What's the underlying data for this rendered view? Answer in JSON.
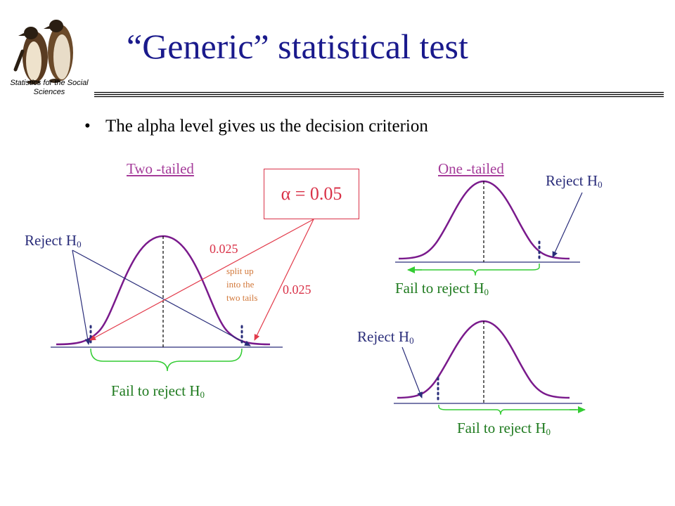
{
  "header": {
    "title": "“Generic” statistical test",
    "logo_caption": "Statistics for the Social Sciences"
  },
  "bullet": {
    "marker": "•",
    "text": "The alpha level gives us the decision criterion"
  },
  "two_tailed": {
    "heading": "Two -tailed",
    "alpha_box": "α = 0.05",
    "left_tail_value": "0.025",
    "right_tail_value": "0.025",
    "split_note": [
      "split up",
      "into the",
      "two tails"
    ],
    "reject": "Reject H",
    "fail": "Fail to reject H",
    "subscript": "0"
  },
  "one_tailed_right": {
    "heading": "One -tailed",
    "reject": "Reject H",
    "fail": "Fail to reject H",
    "subscript": "0"
  },
  "one_tailed_left": {
    "reject": "Reject H",
    "fail": "Fail to reject H",
    "subscript": "0"
  },
  "colors": {
    "title": "#1a1a8c",
    "heading": "#a53c9a",
    "alpha": "#d93248",
    "tail_value": "#d2783a",
    "curve": "#7a1a8c",
    "brace": "#33cc33",
    "arrow_navy": "#2a2d7a",
    "arrow_red": "#e23a4a"
  },
  "icons": {
    "logo": "penguins-logo"
  }
}
